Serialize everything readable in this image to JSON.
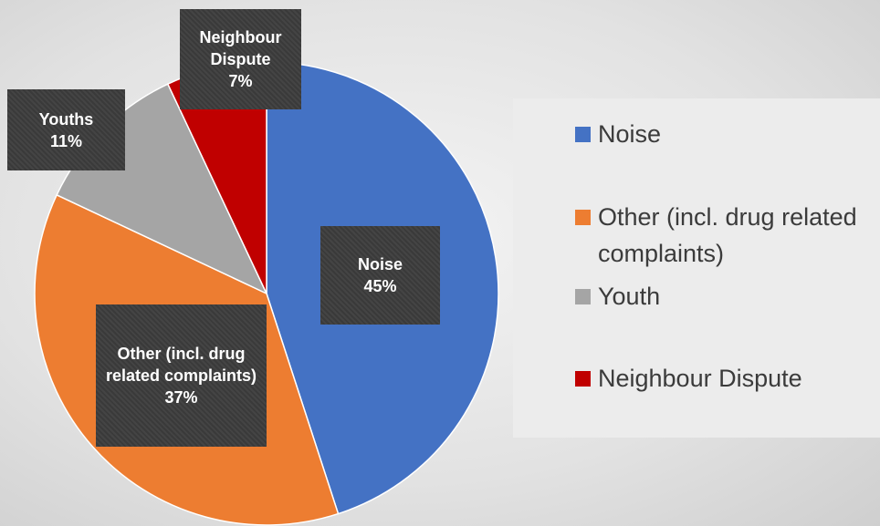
{
  "chart_data": {
    "type": "pie",
    "categories": [
      "Noise",
      "Other (incl. drug related complaints)",
      "Youth",
      "Neighbour Dispute"
    ],
    "label_names": [
      "Noise",
      "Other (incl. drug related complaints)",
      "Youths",
      "Neighbour Dispute"
    ],
    "values": [
      45,
      37,
      11,
      7
    ],
    "value_labels": [
      "45%",
      "37%",
      "11%",
      "7%"
    ],
    "colors": [
      "#4472c4",
      "#ed7d31",
      "#a5a5a5",
      "#c00000"
    ],
    "legend": "right"
  }
}
